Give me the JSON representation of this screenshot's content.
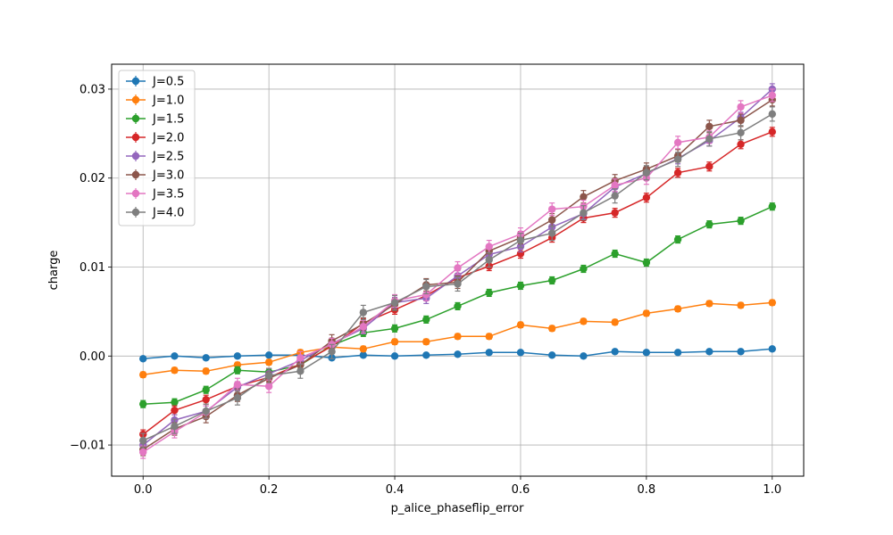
{
  "chart_data": {
    "type": "line",
    "title": "",
    "xlabel": "p_alice_phaseflip_error",
    "ylabel": "charge",
    "xlim": [
      -0.05,
      1.05
    ],
    "ylim": [
      -0.0135,
      0.0328
    ],
    "xticks": [
      0.0,
      0.2,
      0.4,
      0.6,
      0.8,
      1.0
    ],
    "xtick_labels": [
      "0.0",
      "0.2",
      "0.4",
      "0.6",
      "0.8",
      "1.0"
    ],
    "yticks": [
      -0.01,
      0.0,
      0.01,
      0.02,
      0.03
    ],
    "ytick_labels": [
      "−0.01",
      "0.00",
      "0.01",
      "0.02",
      "0.03"
    ],
    "grid": true,
    "legend_position": "top-left",
    "x": [
      0.0,
      0.05,
      0.1,
      0.15,
      0.2,
      0.25,
      0.3,
      0.35,
      0.4,
      0.45,
      0.5,
      0.55,
      0.6,
      0.65,
      0.7,
      0.75,
      0.8,
      0.85,
      0.9,
      0.95,
      1.0
    ],
    "series": [
      {
        "name": "J=0.5",
        "color": "#1f77b4",
        "values": [
          -0.0003,
          0.0,
          -0.0002,
          0.0,
          0.0001,
          0.0001,
          -0.0002,
          0.0001,
          0.0,
          0.0001,
          0.0002,
          0.0004,
          0.0004,
          0.0001,
          0.0,
          0.0005,
          0.0004,
          0.0004,
          0.0005,
          0.0005,
          0.0008
        ],
        "errors": [
          0.0002,
          0.0002,
          0.0002,
          0.0002,
          0.0002,
          0.0002,
          0.0002,
          0.0002,
          0.0002,
          0.0002,
          0.0002,
          0.0002,
          0.0002,
          0.0002,
          0.0002,
          0.0002,
          0.0002,
          0.0002,
          0.0002,
          0.0002,
          0.0002
        ]
      },
      {
        "name": "J=1.0",
        "color": "#ff7f0e",
        "values": [
          -0.0021,
          -0.0016,
          -0.0017,
          -0.001,
          -0.0007,
          0.0004,
          0.001,
          0.0008,
          0.0016,
          0.0016,
          0.0022,
          0.0022,
          0.0035,
          0.0031,
          0.0039,
          0.0038,
          0.0048,
          0.0053,
          0.0059,
          0.0057,
          0.006
        ],
        "errors": [
          0.0003,
          0.0003,
          0.0003,
          0.0003,
          0.0003,
          0.0003,
          0.0003,
          0.0003,
          0.0003,
          0.0003,
          0.0003,
          0.0003,
          0.0003,
          0.0003,
          0.0003,
          0.0003,
          0.0003,
          0.0003,
          0.0003,
          0.0003,
          0.0003
        ]
      },
      {
        "name": "J=1.5",
        "color": "#2ca02c",
        "values": [
          -0.0054,
          -0.0052,
          -0.0038,
          -0.0016,
          -0.0018,
          -0.001,
          0.0012,
          0.0026,
          0.0031,
          0.0041,
          0.0056,
          0.0071,
          0.0079,
          0.0085,
          0.0098,
          0.0115,
          0.0105,
          0.0131,
          0.0148,
          0.0152,
          0.0168
        ],
        "errors": [
          0.0004,
          0.0004,
          0.0004,
          0.0004,
          0.0004,
          0.0004,
          0.0004,
          0.0004,
          0.0004,
          0.0004,
          0.0004,
          0.0004,
          0.0004,
          0.0004,
          0.0004,
          0.0004,
          0.0004,
          0.0004,
          0.0004,
          0.0004,
          0.0004
        ]
      },
      {
        "name": "J=2.0",
        "color": "#d62728",
        "values": [
          -0.0088,
          -0.0061,
          -0.0049,
          -0.0034,
          -0.0024,
          -0.0009,
          0.0011,
          0.0037,
          0.0052,
          0.0068,
          0.0088,
          0.0101,
          0.0115,
          0.0133,
          0.0155,
          0.0161,
          0.0178,
          0.0206,
          0.0213,
          0.0238,
          0.0252
        ],
        "errors": [
          0.0005,
          0.0005,
          0.0005,
          0.0005,
          0.0005,
          0.0005,
          0.0005,
          0.0005,
          0.0005,
          0.0005,
          0.0005,
          0.0005,
          0.0005,
          0.0005,
          0.0005,
          0.0005,
          0.0005,
          0.0005,
          0.0005,
          0.0005,
          0.0005
        ]
      },
      {
        "name": "J=2.5",
        "color": "#9467bd",
        "values": [
          -0.01,
          -0.0072,
          -0.0062,
          -0.0035,
          -0.002,
          -0.0005,
          0.0014,
          0.0031,
          0.006,
          0.0065,
          0.009,
          0.0114,
          0.0123,
          0.0145,
          0.016,
          0.019,
          0.0205,
          0.0222,
          0.0242,
          0.0268,
          0.03
        ],
        "errors": [
          0.0006,
          0.0006,
          0.0006,
          0.0006,
          0.0006,
          0.0006,
          0.0006,
          0.0006,
          0.0006,
          0.0006,
          0.0006,
          0.0006,
          0.0006,
          0.0006,
          0.0006,
          0.0006,
          0.0006,
          0.0006,
          0.0006,
          0.0006,
          0.0006
        ]
      },
      {
        "name": "J=3.0",
        "color": "#8c564b",
        "values": [
          -0.0105,
          -0.0082,
          -0.0068,
          -0.0044,
          -0.0025,
          -0.001,
          0.0017,
          0.0036,
          0.0058,
          0.008,
          0.0083,
          0.0118,
          0.0133,
          0.0153,
          0.0179,
          0.0197,
          0.021,
          0.0225,
          0.0258,
          0.0265,
          0.0288
        ],
        "errors": [
          0.0007,
          0.0007,
          0.0007,
          0.0007,
          0.0007,
          0.0007,
          0.0007,
          0.0007,
          0.0007,
          0.0007,
          0.0007,
          0.0007,
          0.0007,
          0.0007,
          0.0007,
          0.0007,
          0.0007,
          0.0007,
          0.0007,
          0.0007,
          0.0007
        ]
      },
      {
        "name": "J=3.5",
        "color": "#e377c2",
        "values": [
          -0.0108,
          -0.0085,
          -0.0063,
          -0.0032,
          -0.0034,
          -0.0002,
          0.0013,
          0.0033,
          0.0062,
          0.0069,
          0.0099,
          0.0123,
          0.0137,
          0.0165,
          0.0168,
          0.0192,
          0.02,
          0.024,
          0.0246,
          0.028,
          0.0293
        ],
        "errors": [
          0.0007,
          0.0007,
          0.0007,
          0.0007,
          0.0007,
          0.0007,
          0.0007,
          0.0007,
          0.0007,
          0.0007,
          0.0007,
          0.0007,
          0.0007,
          0.0007,
          0.0007,
          0.0007,
          0.0007,
          0.0007,
          0.0007,
          0.0007,
          0.0007
        ]
      },
      {
        "name": "J=4.0",
        "color": "#7f7f7f",
        "values": [
          -0.0095,
          -0.0079,
          -0.0062,
          -0.0047,
          -0.0022,
          -0.0017,
          0.0005,
          0.0049,
          0.006,
          0.0078,
          0.0081,
          0.0108,
          0.013,
          0.0138,
          0.0161,
          0.018,
          0.0206,
          0.0221,
          0.0244,
          0.0251,
          0.0272
        ],
        "errors": [
          0.0008,
          0.0008,
          0.0008,
          0.0008,
          0.0008,
          0.0008,
          0.0008,
          0.0008,
          0.0008,
          0.0008,
          0.0008,
          0.0008,
          0.0008,
          0.0008,
          0.0008,
          0.0008,
          0.0008,
          0.0008,
          0.0008,
          0.0008,
          0.0008
        ]
      }
    ]
  }
}
